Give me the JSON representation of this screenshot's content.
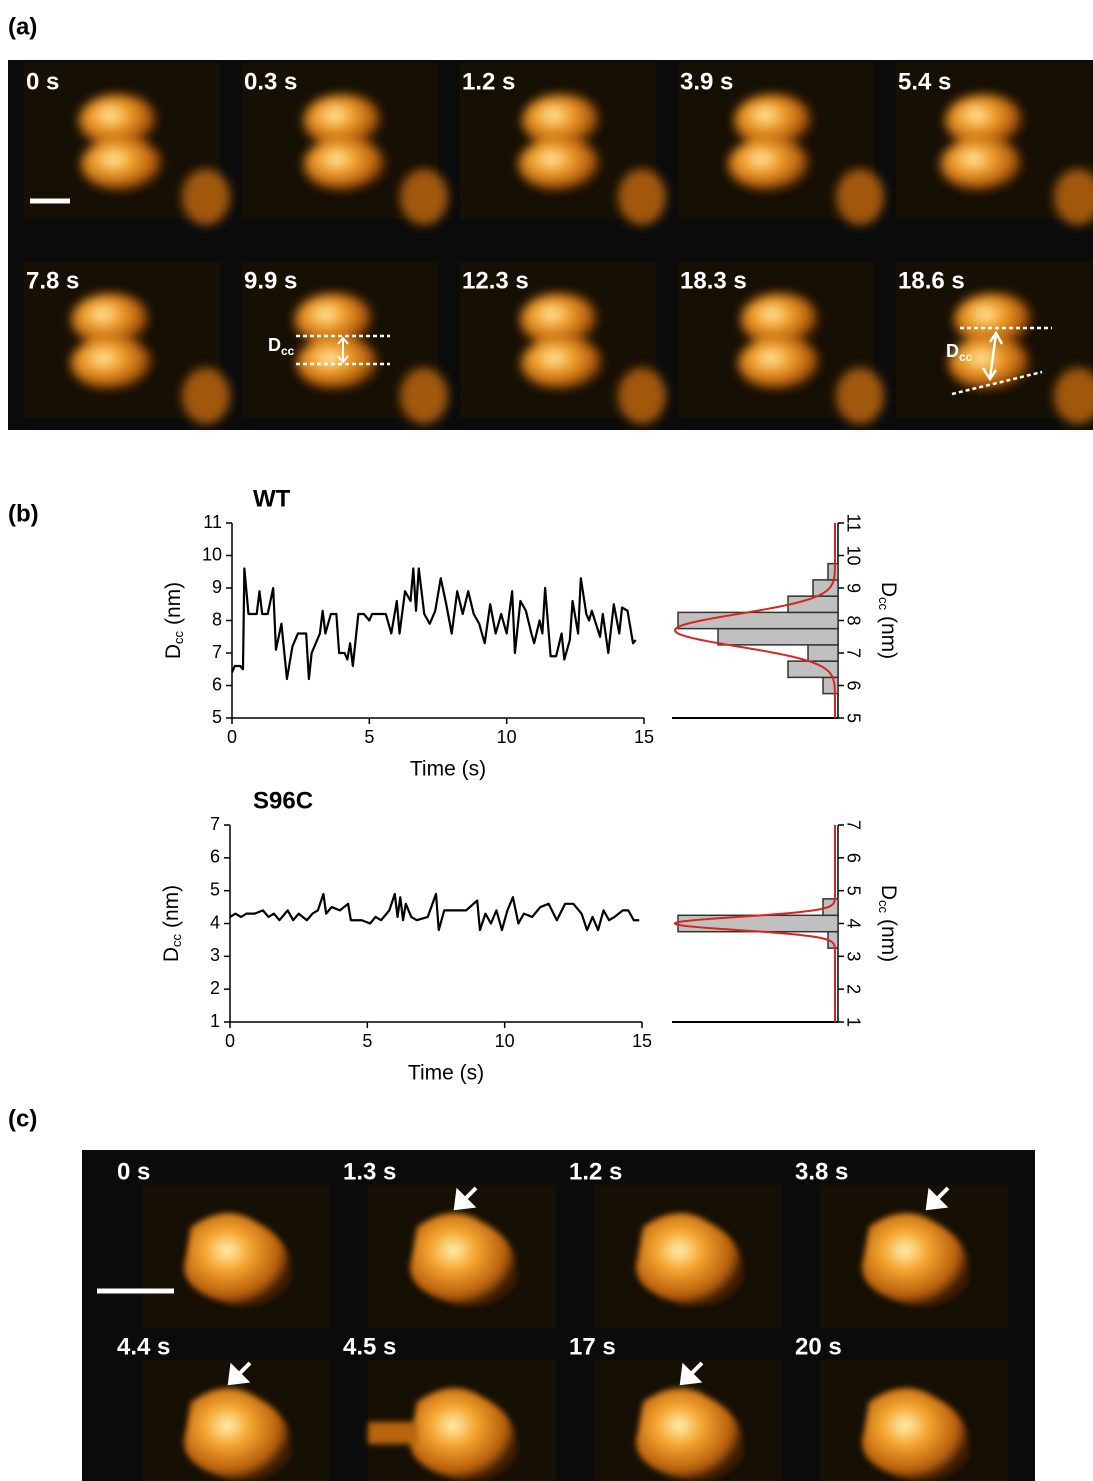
{
  "panel_a": {
    "label": "(a)",
    "frames": [
      "0 s",
      "0.3 s",
      "1.2 s",
      "3.9 s",
      "5.4 s",
      "7.8 s",
      "9.9 s",
      "12.3 s",
      "18.3 s",
      "18.6 s"
    ],
    "dcc_symbol": "D",
    "dcc_subscript": "cc"
  },
  "panel_b": {
    "label": "(b)"
  },
  "chart_data": [
    {
      "type": "line",
      "title": "WT",
      "xlabel": "Time (s)",
      "ylabel": {
        "symbol": "D",
        "subscript": "cc",
        "unit": "(nm)"
      },
      "color": "#000000",
      "x": [
        0,
        0.1,
        0.3,
        0.4,
        0.45,
        0.6,
        0.9,
        1.0,
        1.1,
        1.3,
        1.5,
        1.6,
        1.8,
        2.0,
        2.2,
        2.4,
        2.7,
        2.8,
        2.9,
        3.2,
        3.3,
        3.4,
        3.6,
        3.8,
        3.9,
        4.1,
        4.2,
        4.3,
        4.4,
        4.6,
        4.8,
        5.0,
        5.1,
        5.6,
        5.8,
        6.0,
        6.1,
        6.3,
        6.5,
        6.6,
        6.7,
        6.8,
        7.0,
        7.2,
        7.4,
        7.6,
        7.8,
        8.0,
        8.2,
        8.4,
        8.6,
        8.8,
        9.0,
        9.2,
        9.4,
        9.6,
        9.8,
        10.0,
        10.2,
        10.3,
        10.5,
        10.7,
        10.9,
        11.0,
        11.2,
        11.3,
        11.4,
        11.6,
        11.8,
        12.0,
        12.1,
        12.3,
        12.4,
        12.6,
        12.7,
        12.9,
        13.0,
        13.1,
        13.4,
        13.5,
        13.7,
        13.9,
        14.1,
        14.2,
        14.4,
        14.6,
        14.7
      ],
      "values": [
        6.4,
        6.6,
        6.6,
        6.5,
        9.6,
        8.2,
        8.2,
        8.9,
        8.2,
        8.2,
        9.0,
        7.1,
        7.9,
        6.2,
        7.2,
        7.6,
        7.6,
        6.2,
        7.0,
        7.6,
        8.3,
        7.6,
        8.2,
        8.2,
        7.0,
        7.0,
        6.8,
        7.3,
        6.6,
        8.2,
        8.2,
        8.0,
        8.2,
        8.2,
        7.6,
        8.6,
        7.6,
        8.9,
        8.6,
        9.6,
        8.3,
        9.6,
        8.2,
        7.9,
        8.3,
        9.3,
        8.5,
        7.6,
        8.9,
        8.2,
        8.9,
        8.2,
        7.9,
        7.3,
        8.5,
        7.6,
        8.2,
        7.6,
        8.9,
        7.0,
        8.6,
        8.3,
        7.6,
        7.3,
        8.0,
        7.6,
        9.0,
        6.9,
        6.9,
        7.6,
        6.8,
        7.4,
        8.6,
        7.6,
        9.3,
        8.2,
        8.0,
        8.3,
        7.5,
        8.2,
        7.0,
        8.5,
        7.6,
        8.4,
        8.3,
        7.3,
        7.4
      ],
      "xlim": [
        -0.2,
        15
      ],
      "xticks": [
        0,
        5,
        10,
        15
      ],
      "ylim": [
        5,
        11
      ],
      "yticks": [
        5,
        6,
        7,
        8,
        9,
        10,
        11
      ],
      "histogram": {
        "bins": [
          5.75,
          6.25,
          6.75,
          7.25,
          7.75,
          8.25,
          8.75,
          9.25,
          9.75
        ],
        "counts": [
          3,
          10,
          6,
          24,
          32,
          10,
          5,
          2
        ],
        "xlim": [
          0,
          32
        ],
        "color": "#c0c0c0",
        "fit": {
          "mean": 7.7,
          "sd": 0.5,
          "peak": 32,
          "color": "#d6261f"
        }
      }
    },
    {
      "type": "line",
      "title": "S96C",
      "xlabel": "Time (s)",
      "ylabel": {
        "symbol": "D",
        "subscript": "cc",
        "unit": "(nm)"
      },
      "color": "#000000",
      "x": [
        0,
        0.2,
        0.4,
        0.6,
        0.9,
        1.2,
        1.4,
        1.6,
        1.8,
        2.1,
        2.3,
        2.5,
        2.8,
        3.0,
        3.2,
        3.4,
        3.5,
        3.7,
        4.0,
        4.3,
        4.4,
        4.6,
        4.8,
        5.1,
        5.3,
        5.5,
        5.8,
        6.0,
        6.1,
        6.2,
        6.3,
        6.4,
        6.6,
        6.8,
        7.2,
        7.5,
        7.6,
        7.8,
        8.2,
        8.6,
        9.0,
        9.1,
        9.3,
        9.5,
        9.7,
        9.9,
        10.1,
        10.3,
        10.5,
        10.7,
        11.0,
        11.3,
        11.6,
        11.9,
        12.2,
        12.5,
        12.8,
        13.0,
        13.2,
        13.4,
        13.6,
        13.8,
        14.0,
        14.3,
        14.5,
        14.7,
        14.9
      ],
      "values": [
        4.2,
        4.3,
        4.2,
        4.3,
        4.3,
        4.4,
        4.2,
        4.3,
        4.1,
        4.4,
        4.1,
        4.3,
        4.1,
        4.3,
        4.4,
        4.9,
        4.3,
        4.5,
        4.4,
        4.6,
        4.1,
        4.1,
        4.1,
        4.0,
        4.2,
        4.1,
        4.4,
        4.9,
        4.2,
        4.8,
        4.1,
        4.6,
        4.2,
        4.1,
        4.2,
        4.9,
        3.8,
        4.4,
        4.4,
        4.4,
        4.7,
        3.8,
        4.3,
        4.0,
        4.4,
        3.8,
        4.4,
        4.8,
        4.0,
        4.3,
        4.2,
        4.5,
        4.6,
        4.1,
        4.6,
        4.6,
        4.3,
        3.8,
        4.2,
        3.8,
        4.4,
        4.1,
        4.2,
        4.4,
        4.4,
        4.1,
        4.1
      ],
      "xlim": [
        0,
        15
      ],
      "xticks": [
        0,
        5,
        10,
        15
      ],
      "ylim": [
        1,
        7
      ],
      "yticks": [
        1,
        2,
        3,
        4,
        5,
        6,
        7
      ],
      "histogram": {
        "bins": [
          3.25,
          3.75,
          4.25,
          4.75
        ],
        "counts": [
          2,
          32,
          3
        ],
        "xlim": [
          0,
          32
        ],
        "color": "#c0c0c0",
        "fit": {
          "mean": 4.0,
          "sd": 0.2,
          "peak": 32,
          "color": "#d6261f"
        }
      }
    }
  ],
  "panel_c": {
    "label": "(c)",
    "frames": [
      "0 s",
      "1.3 s",
      "1.2 s",
      "3.8 s",
      "4.4 s",
      "4.5 s",
      "17 s",
      "20 s"
    ]
  }
}
